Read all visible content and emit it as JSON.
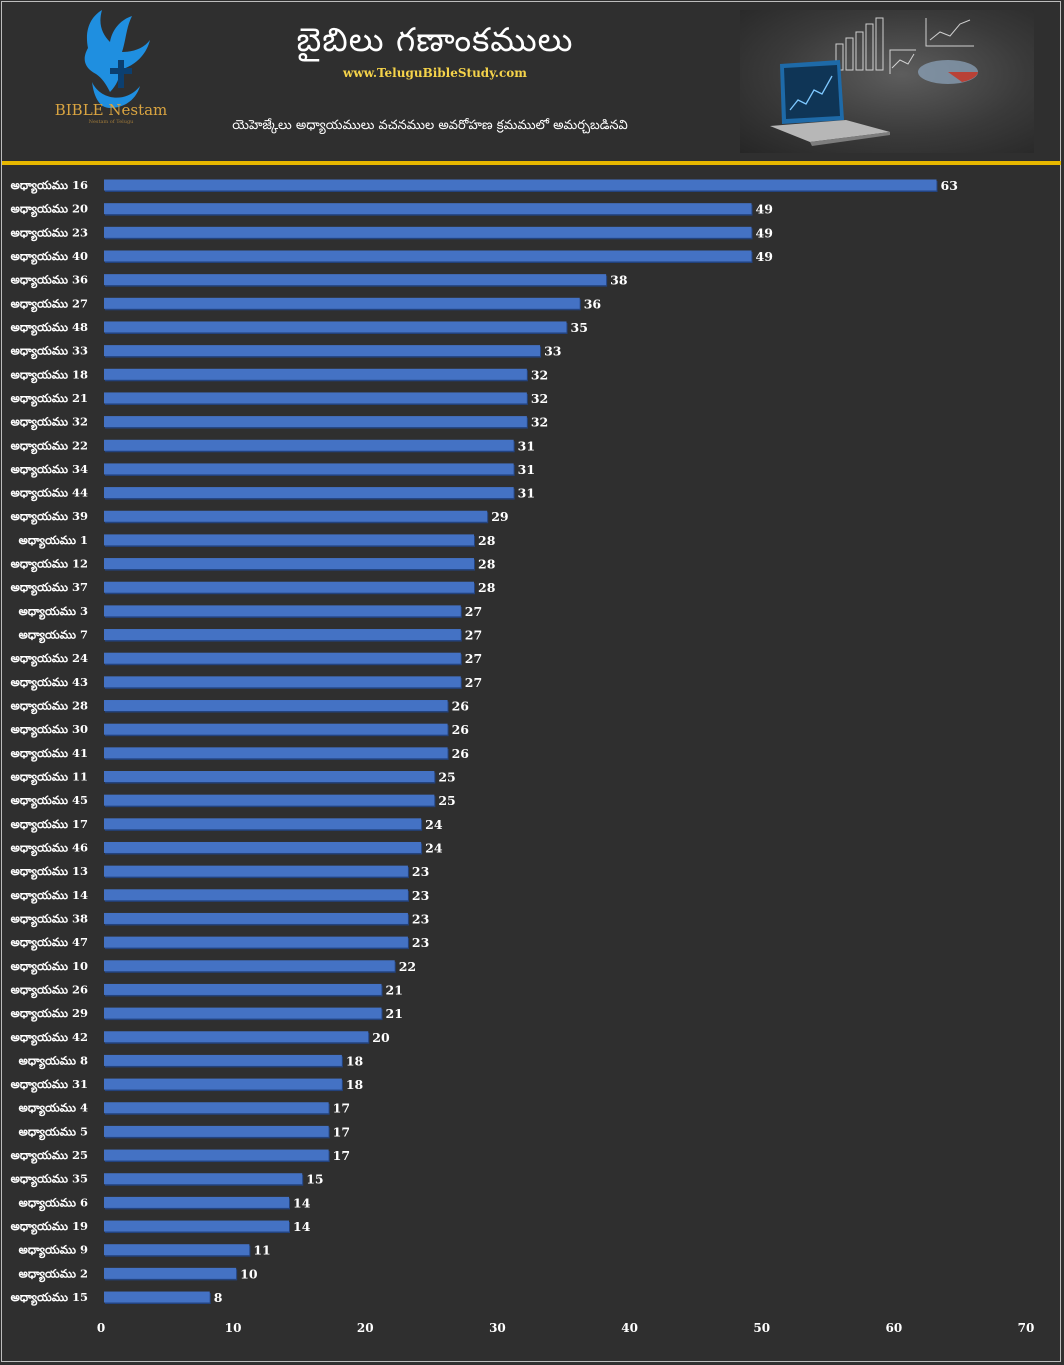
{
  "header": {
    "title": "బైబిలు గణాంకములు",
    "website": "www.TeluguBibleStudy.com",
    "subtitle": "యెహెజ్కేలు అధ్యాయములు వచనముల అవరోహణ క్రమములో అమర్చబడినవి",
    "logo_text": "BIBLE Nestam",
    "logo_tagline": "Nestam of Telugu"
  },
  "colors": {
    "background": "#2f2f2f",
    "bar": "#4472c4",
    "bar_shadow": "#23437f",
    "accent_rule": "#e7b800",
    "logo_gold": "#d9a441",
    "logo_blue": "#1f8fe0"
  },
  "chart_data": {
    "type": "bar",
    "orientation": "horizontal",
    "categories": [
      "అధ్యాయము 16",
      "అధ్యాయము 20",
      "అధ్యాయము 23",
      "అధ్యాయము 40",
      "అధ్యాయము 36",
      "అధ్యాయము 27",
      "అధ్యాయము 48",
      "అధ్యాయము 33",
      "అధ్యాయము 18",
      "అధ్యాయము 21",
      "అధ్యాయము 32",
      "అధ్యాయము 22",
      "అధ్యాయము 34",
      "అధ్యాయము 44",
      "అధ్యాయము 39",
      "అధ్యాయము 1",
      "అధ్యాయము 12",
      "అధ్యాయము 37",
      "అధ్యాయము 3",
      "అధ్యాయము 7",
      "అధ్యాయము 24",
      "అధ్యాయము 43",
      "అధ్యాయము 28",
      "అధ్యాయము 30",
      "అధ్యాయము 41",
      "అధ్యాయము 11",
      "అధ్యాయము 45",
      "అధ్యాయము 17",
      "అధ్యాయము 46",
      "అధ్యాయము 13",
      "అధ్యాయము 14",
      "అధ్యాయము 38",
      "అధ్యాయము 47",
      "అధ్యాయము 10",
      "అధ్యాయము 26",
      "అధ్యాయము 29",
      "అధ్యాయము 42",
      "అధ్యాయము 8",
      "అధ్యాయము 31",
      "అధ్యాయము 4",
      "అధ్యాయము 5",
      "అధ్యాయము 25",
      "అధ్యాయము 35",
      "అధ్యాయము 6",
      "అధ్యాయము 19",
      "అధ్యాయము 9",
      "అధ్యాయము 2",
      "అధ్యాయము 15"
    ],
    "values": [
      63,
      49,
      49,
      49,
      38,
      36,
      35,
      33,
      32,
      32,
      32,
      31,
      31,
      31,
      29,
      28,
      28,
      28,
      27,
      27,
      27,
      27,
      26,
      26,
      26,
      25,
      25,
      24,
      24,
      23,
      23,
      23,
      23,
      22,
      21,
      21,
      20,
      18,
      18,
      17,
      17,
      17,
      15,
      14,
      14,
      11,
      10,
      8
    ],
    "xlim": [
      0,
      70
    ],
    "xticks": [
      0,
      10,
      20,
      30,
      40,
      50,
      60,
      70
    ],
    "data_labels": true,
    "grid": false,
    "legend": "none"
  }
}
